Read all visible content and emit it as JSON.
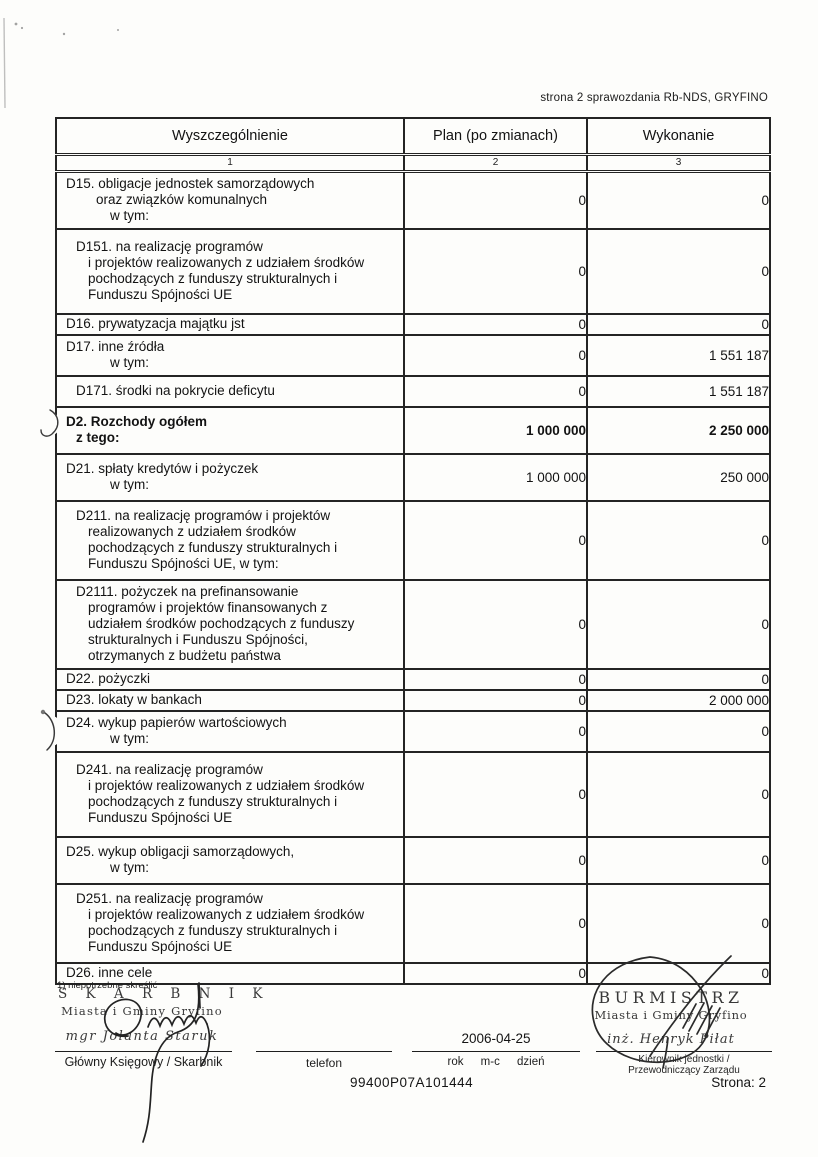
{
  "page_header": "strona 2 sprawozdania Rb-NDS, GRYFINO",
  "table": {
    "columns": [
      "Wyszczególnienie",
      "Plan (po zmianach)",
      "Wykonanie"
    ],
    "column_numbers": [
      "1",
      "2",
      "3"
    ],
    "rows": [
      {
        "size": "s",
        "bold": false,
        "plan": "0",
        "wykonanie": "0",
        "lines": [
          [
            0,
            "D15. obligacje jednostek samorządowych"
          ],
          [
            3,
            "oraz związków komunalnych"
          ],
          [
            4,
            "w tym:"
          ]
        ]
      },
      {
        "size": "l",
        "bold": false,
        "plan": "0",
        "wykonanie": "0",
        "lines": [
          [
            1,
            "D151. na realizację programów"
          ],
          [
            2,
            "i projektów realizowanych z udziałem środków"
          ],
          [
            2,
            "pochodzących z funduszy strukturalnych i"
          ],
          [
            2,
            "Funduszu Spójności UE"
          ]
        ]
      },
      {
        "size": "t",
        "bold": false,
        "plan": "0",
        "wykonanie": "0",
        "lines": [
          [
            0,
            "D16. prywatyzacja majątku jst"
          ]
        ]
      },
      {
        "size": "s",
        "bold": false,
        "plan": "0",
        "wykonanie": "1 551 187",
        "lines": [
          [
            0,
            "D17. inne źródła"
          ],
          [
            4,
            "w tym:"
          ]
        ]
      },
      {
        "size": "m",
        "bold": false,
        "plan": "0",
        "wykonanie": "1 551 187",
        "lines": [
          [
            1,
            "D171. środki na pokrycie deficytu"
          ]
        ]
      },
      {
        "size": "m",
        "bold": true,
        "plan": "1 000 000",
        "wykonanie": "2 250 000",
        "lines": [
          [
            0,
            "D2. Rozchody ogółem"
          ],
          [
            1,
            "z tego:"
          ]
        ]
      },
      {
        "size": "m",
        "bold": false,
        "plan": "1 000 000",
        "wykonanie": "250 000",
        "lines": [
          [
            0,
            "D21. spłaty kredytów i pożyczek"
          ],
          [
            4,
            "w tym:"
          ]
        ]
      },
      {
        "size": "m",
        "bold": false,
        "plan": "0",
        "wykonanie": "0",
        "lines": [
          [
            1,
            "D211. na realizację programów i projektów"
          ],
          [
            2,
            "realizowanych z udziałem środków"
          ],
          [
            2,
            "pochodzących z funduszy strukturalnych i"
          ],
          [
            2,
            "Funduszu Spójności UE, w tym:"
          ]
        ]
      },
      {
        "size": "s",
        "bold": false,
        "plan": "0",
        "wykonanie": "0",
        "lines": [
          [
            1,
            "D2111. pożyczek na prefinansowanie"
          ],
          [
            2,
            "programów i projektów finansowanych z"
          ],
          [
            2,
            "udziałem środków pochodzących z funduszy"
          ],
          [
            2,
            "strukturalnych i Funduszu Spójności,"
          ],
          [
            2,
            "otrzymanych z budżetu państwa"
          ]
        ]
      },
      {
        "size": "t",
        "bold": false,
        "plan": "0",
        "wykonanie": "0",
        "lines": [
          [
            0,
            "D22. pożyczki"
          ]
        ]
      },
      {
        "size": "t",
        "bold": false,
        "plan": "0",
        "wykonanie": "2 000 000",
        "lines": [
          [
            0,
            "D23. lokaty w bankach"
          ]
        ]
      },
      {
        "size": "s",
        "bold": false,
        "plan": "0",
        "wykonanie": "0",
        "lines": [
          [
            0,
            "D24. wykup papierów wartościowych"
          ],
          [
            4,
            "w tym:"
          ]
        ]
      },
      {
        "size": "l",
        "bold": false,
        "plan": "0",
        "wykonanie": "0",
        "lines": [
          [
            1,
            "D241. na realizację programów"
          ],
          [
            2,
            "i projektów realizowanych z udziałem środków"
          ],
          [
            2,
            "pochodzących z funduszy strukturalnych i"
          ],
          [
            2,
            "Funduszu Spójności UE"
          ]
        ]
      },
      {
        "size": "m",
        "bold": false,
        "plan": "0",
        "wykonanie": "0",
        "lines": [
          [
            0,
            "D25. wykup obligacji samorządowych,"
          ],
          [
            4,
            "w tym:"
          ]
        ]
      },
      {
        "size": "m",
        "bold": false,
        "plan": "0",
        "wykonanie": "0",
        "lines": [
          [
            1,
            "D251. na realizację programów"
          ],
          [
            2,
            "i projektów realizowanych z udziałem środków"
          ],
          [
            2,
            "pochodzących z funduszy strukturalnych i"
          ],
          [
            2,
            "Funduszu Spójności UE"
          ]
        ]
      },
      {
        "size": "t",
        "bold": false,
        "plan": "0",
        "wykonanie": "0",
        "lines": [
          [
            0,
            "D26. inne cele"
          ]
        ]
      }
    ]
  },
  "footnote": "1) niepotrzebne skreślić",
  "signatures": {
    "left_stamp": {
      "line1": "S K A R B N I K",
      "line2": "Miasta i Gminy Gryfino",
      "line3": "mgr Jolanta Staruk"
    },
    "left_label": "Główny Księgowy / Skarbnik",
    "phone_label": "telefon",
    "date_value": "2006-04-25",
    "date_label": "rok m-c dzień",
    "right_stamp": {
      "line1": "BURMISTRZ",
      "line2": "Miasta i Gminy Gryfino",
      "line3": "inż. Henryk Piłat"
    },
    "right_label_line1": "Kierownik jednostki /",
    "right_label_line2": "Przewodniczący Zarządu",
    "doc_code": "99400P07A101444",
    "page_label": "Strona: 2"
  }
}
